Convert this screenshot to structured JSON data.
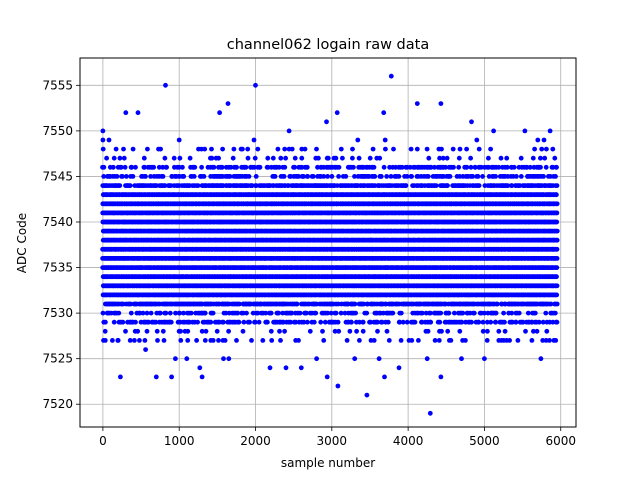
{
  "chart_data": {
    "type": "scatter",
    "title": "channel062 logain raw data",
    "xlabel": "sample number",
    "ylabel": "ADC Code",
    "xlim": [
      -300,
      6200
    ],
    "ylim": [
      7517.5,
      7558
    ],
    "xticks": [
      0,
      1000,
      2000,
      3000,
      4000,
      5000,
      6000
    ],
    "xtick_labels": [
      "0",
      "1000",
      "2000",
      "3000",
      "4000",
      "5000",
      "6000"
    ],
    "yticks": [
      7520,
      7525,
      7530,
      7535,
      7540,
      7545,
      7550,
      7555
    ],
    "ytick_labels": [
      "7520",
      "7525",
      "7530",
      "7535",
      "7540",
      "7545",
      "7550",
      "7555"
    ],
    "grid": true,
    "marker_color": "#0000ff",
    "series": [
      {
        "core_range_y": [
          7529,
          7546
        ],
        "x_range": [
          0,
          5950
        ],
        "sample_count_approx": 5950,
        "points": [
          [
            0,
            7550
          ],
          [
            300,
            7552
          ],
          [
            460,
            7552
          ],
          [
            820,
            7555
          ],
          [
            2000,
            7555
          ],
          [
            3070,
            7552
          ],
          [
            3680,
            7552
          ],
          [
            3780,
            7556
          ],
          [
            4120,
            7553
          ],
          [
            4430,
            7553
          ],
          [
            4830,
            7551
          ],
          [
            5120,
            7550
          ],
          [
            5530,
            7550
          ],
          [
            5860,
            7550
          ],
          [
            1530,
            7552
          ],
          [
            1640,
            7553
          ],
          [
            2440,
            7550
          ],
          [
            2930,
            7551
          ],
          [
            0,
            7549
          ],
          [
            80,
            7549
          ],
          [
            1000,
            7549
          ],
          [
            1980,
            7549
          ],
          [
            3340,
            7549
          ],
          [
            3700,
            7549
          ],
          [
            4900,
            7549
          ],
          [
            5700,
            7549
          ],
          [
            5780,
            7549
          ],
          [
            230,
            7523
          ],
          [
            700,
            7523
          ],
          [
            900,
            7523
          ],
          [
            950,
            7525
          ],
          [
            1270,
            7524
          ],
          [
            1300,
            7523
          ],
          [
            1580,
            7525
          ],
          [
            2190,
            7524
          ],
          [
            2400,
            7524
          ],
          [
            2940,
            7523
          ],
          [
            3080,
            7522
          ],
          [
            3460,
            7521
          ],
          [
            3620,
            7525
          ],
          [
            3690,
            7523
          ],
          [
            3880,
            7524
          ],
          [
            4290,
            7519
          ],
          [
            4250,
            7525
          ],
          [
            4430,
            7523
          ],
          [
            4700,
            7525
          ],
          [
            5000,
            7525
          ],
          [
            5740,
            7525
          ],
          [
            2600,
            7524
          ],
          [
            2800,
            7525
          ],
          [
            3300,
            7525
          ],
          [
            1650,
            7525
          ],
          [
            1100,
            7525
          ],
          [
            200,
            7527
          ],
          [
            560,
            7526
          ],
          [
            3200,
            7527
          ],
          [
            4560,
            7527
          ],
          [
            5330,
            7527
          ],
          [
            5810,
            7527
          ]
        ]
      }
    ]
  }
}
